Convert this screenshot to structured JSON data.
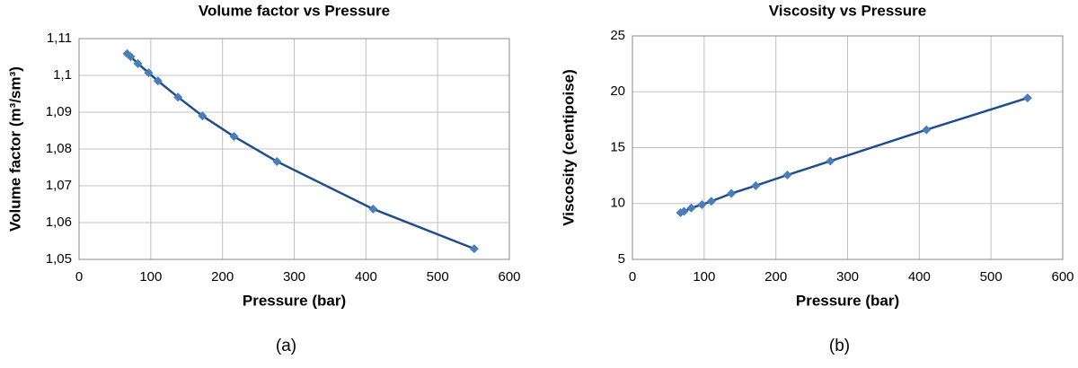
{
  "chart_data": [
    {
      "type": "line",
      "title": "Volume factor vs Pressure",
      "x_label": "Pressure (bar)",
      "y_label": "Volume factor (m³/sm³)",
      "caption": "(a)",
      "x": [
        67,
        72,
        82,
        97,
        110,
        138,
        172,
        216,
        276,
        410,
        551
      ],
      "series": [
        {
          "name": "Volume factor",
          "color": "#4a7ebb",
          "line_color": "#1f4e8c",
          "values": [
            1.1059,
            1.1051,
            1.1032,
            1.1007,
            1.0985,
            1.0941,
            1.089,
            1.0834,
            1.0766,
            1.0637,
            1.0529
          ]
        }
      ],
      "xlim": [
        0,
        600
      ],
      "xticks": [
        0,
        100,
        200,
        300,
        400,
        500,
        600
      ],
      "ylim": [
        1.05,
        1.11
      ],
      "yticks": [
        {
          "value": 1.05,
          "label": "1,05"
        },
        {
          "value": 1.06,
          "label": "1,06"
        },
        {
          "value": 1.07,
          "label": "1,07"
        },
        {
          "value": 1.08,
          "label": "1,08"
        },
        {
          "value": 1.09,
          "label": "1,09"
        },
        {
          "value": 1.1,
          "label": "1,1"
        },
        {
          "value": 1.11,
          "label": "1,11"
        }
      ],
      "grid": true
    },
    {
      "type": "line",
      "title": "Viscosity vs Pressure",
      "x_label": "Pressure (bar)",
      "y_label": "Viscosity (centipoise)",
      "caption": "(b)",
      "x": [
        67,
        72,
        82,
        97,
        110,
        138,
        172,
        216,
        276,
        410,
        551
      ],
      "series": [
        {
          "name": "Viscosity",
          "color": "#4a7ebb",
          "line_color": "#1f4e8c",
          "values": [
            9.18,
            9.3,
            9.6,
            9.9,
            10.2,
            10.9,
            11.6,
            12.55,
            13.8,
            16.6,
            19.45
          ]
        }
      ],
      "xlim": [
        0,
        600
      ],
      "xticks": [
        0,
        100,
        200,
        300,
        400,
        500,
        600
      ],
      "ylim": [
        5,
        25
      ],
      "yticks": [
        5,
        10,
        15,
        20,
        25
      ],
      "grid": true
    }
  ]
}
